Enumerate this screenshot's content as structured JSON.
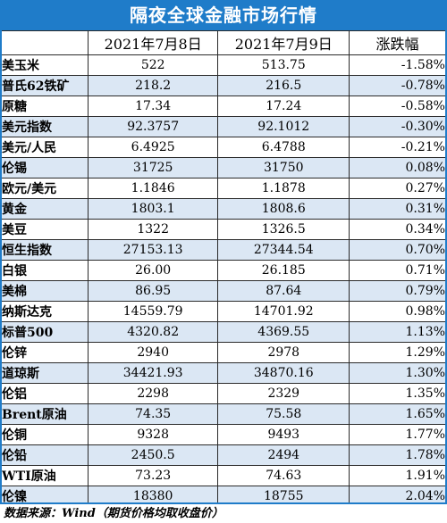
{
  "title": "隔夜全球金融市场行情",
  "headers": [
    "",
    "2021年7月8日",
    "2021年7月9日",
    "涨跌幅"
  ],
  "rows": [
    {
      "name": "美玉米",
      "d1": "522",
      "d2": "513.75",
      "chg": "-1.58%"
    },
    {
      "name": "普氏62铁矿",
      "d1": "218.2",
      "d2": "216.5",
      "chg": "-0.78%"
    },
    {
      "name": "原糖",
      "d1": "17.34",
      "d2": "17.24",
      "chg": "-0.58%"
    },
    {
      "name": "美元指数",
      "d1": "92.3757",
      "d2": "92.1012",
      "chg": "-0.30%"
    },
    {
      "name": "美元/人民",
      "d1": "6.4925",
      "d2": "6.4788",
      "chg": "-0.21%"
    },
    {
      "name": "伦锡",
      "d1": "31725",
      "d2": "31750",
      "chg": "0.08%"
    },
    {
      "name": "欧元/美元",
      "d1": "1.1846",
      "d2": "1.1878",
      "chg": "0.27%"
    },
    {
      "name": "黄金",
      "d1": "1803.1",
      "d2": "1808.6",
      "chg": "0.31%"
    },
    {
      "name": "美豆",
      "d1": "1322",
      "d2": "1326.5",
      "chg": "0.34%"
    },
    {
      "name": "恒生指数",
      "d1": "27153.13",
      "d2": "27344.54",
      "chg": "0.70%"
    },
    {
      "name": "白银",
      "d1": "26.00",
      "d2": "26.185",
      "chg": "0.71%"
    },
    {
      "name": "美棉",
      "d1": "86.95",
      "d2": "87.64",
      "chg": "0.79%"
    },
    {
      "name": "纳斯达克",
      "d1": "14559.79",
      "d2": "14701.92",
      "chg": "0.98%"
    },
    {
      "name": "标普500",
      "d1": "4320.82",
      "d2": "4369.55",
      "chg": "1.13%"
    },
    {
      "name": "伦锌",
      "d1": "2940",
      "d2": "2978",
      "chg": "1.29%"
    },
    {
      "name": "道琼斯",
      "d1": "34421.93",
      "d2": "34870.16",
      "chg": "1.30%"
    },
    {
      "name": "伦铝",
      "d1": "2298",
      "d2": "2329",
      "chg": "1.35%"
    },
    {
      "name": "Brent原油",
      "d1": "74.35",
      "d2": "75.58",
      "chg": "1.65%"
    },
    {
      "name": "伦铜",
      "d1": "9328",
      "d2": "9493",
      "chg": "1.77%"
    },
    {
      "name": "伦铅",
      "d1": "2450.5",
      "d2": "2494",
      "chg": "1.78%"
    },
    {
      "name": "WTI原油",
      "d1": "73.23",
      "d2": "74.63",
      "chg": "1.91%"
    },
    {
      "name": "伦镍",
      "d1": "18380",
      "d2": "18755",
      "chg": "2.04%"
    }
  ],
  "footer": "数据来源：Wind（期货价格均取收盘价）",
  "colors": {
    "accent": "#1f7cc9",
    "stripe": "#dbe7f4"
  }
}
